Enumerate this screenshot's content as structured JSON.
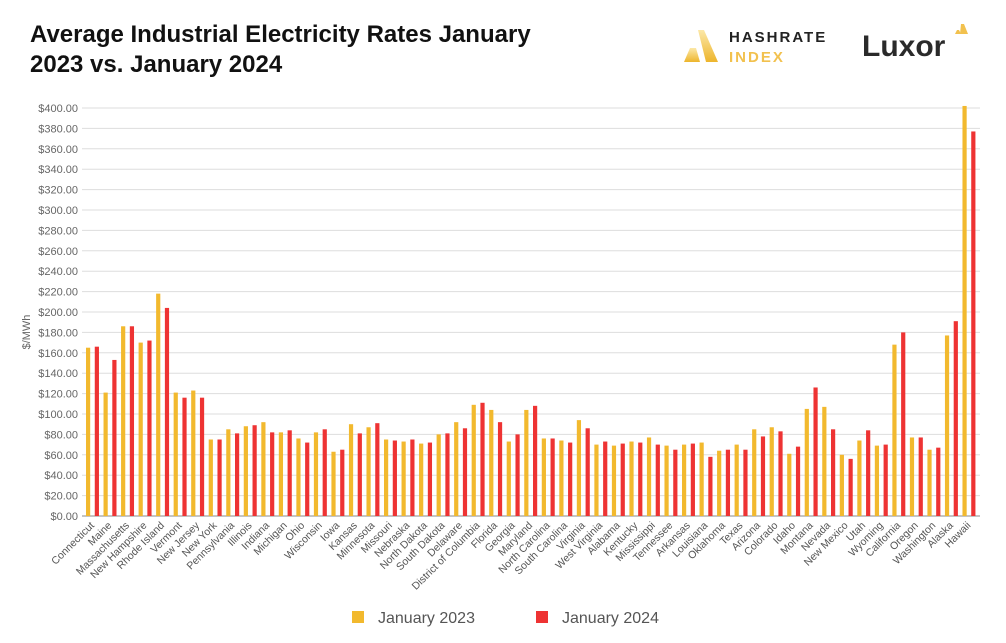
{
  "title": "Average Industrial Electricity Rates January 2023 vs. January 2024",
  "logos": {
    "hashrate_index": "HASHRATE INDEX",
    "hashrate_line1": "HASHRATE",
    "hashrate_line2": "INDEX",
    "luxor": "Luxor"
  },
  "colors": {
    "january_2023": "#F2B92E",
    "january_2024": "#EE3333",
    "grid": "#DDDDDD",
    "brand_gold": "#F2C14E"
  },
  "chart_data": {
    "type": "bar",
    "title": "Average Industrial Electricity Rates January 2023 vs. January 2024",
    "xlabel": "",
    "ylabel": "$/MWh",
    "ylim": [
      0,
      400
    ],
    "yticks": [
      0,
      20,
      40,
      60,
      80,
      100,
      120,
      140,
      160,
      180,
      200,
      220,
      240,
      260,
      280,
      300,
      320,
      340,
      360,
      380,
      400
    ],
    "ytick_format": "$0.00",
    "grid": true,
    "legend": "bottom",
    "categories": [
      "Connecticut",
      "Maine",
      "Massachusetts",
      "New Hampshire",
      "Rhode Island",
      "Vermont",
      "New Jersey",
      "New York",
      "Pennsylvania",
      "Illinois",
      "Indiana",
      "Michigan",
      "Ohio",
      "Wisconsin",
      "Iowa",
      "Kansas",
      "Minnesota",
      "Missouri",
      "Nebraska",
      "North Dakota",
      "South Dakota",
      "Delaware",
      "District of Columbia",
      "Florida",
      "Georgia",
      "Maryland",
      "North Carolina",
      "South Carolina",
      "Virginia",
      "West Virginia",
      "Alabama",
      "Kentucky",
      "Mississippi",
      "Tennessee",
      "Arkansas",
      "Louisiana",
      "Oklahoma",
      "Texas",
      "Arizona",
      "Colorado",
      "Idaho",
      "Montana",
      "Nevada",
      "New Mexico",
      "Utah",
      "Wyoming",
      "California",
      "Oregon",
      "Washington",
      "Alaska",
      "Hawaii"
    ],
    "series": [
      {
        "name": "January 2023",
        "values": [
          165,
          121,
          186,
          170,
          218,
          121,
          123,
          75,
          85,
          88,
          92,
          82,
          76,
          82,
          63,
          90,
          87,
          75,
          73,
          71,
          80,
          92,
          109,
          104,
          73,
          104,
          76,
          74,
          94,
          70,
          69,
          73,
          77,
          69,
          70,
          72,
          64,
          70,
          85,
          87,
          61,
          105,
          107,
          60,
          74,
          69,
          168,
          77,
          65,
          177,
          402
        ]
      },
      {
        "name": "January 2024",
        "values": [
          166,
          153,
          186,
          172,
          204,
          116,
          116,
          75,
          81,
          89,
          82,
          84,
          72,
          85,
          65,
          81,
          91,
          74,
          75,
          72,
          81,
          86,
          111,
          92,
          80,
          108,
          76,
          72,
          86,
          73,
          71,
          72,
          70,
          65,
          71,
          58,
          65,
          65,
          78,
          83,
          68,
          126,
          85,
          56,
          84,
          70,
          180,
          77,
          67,
          191,
          377
        ]
      }
    ]
  }
}
